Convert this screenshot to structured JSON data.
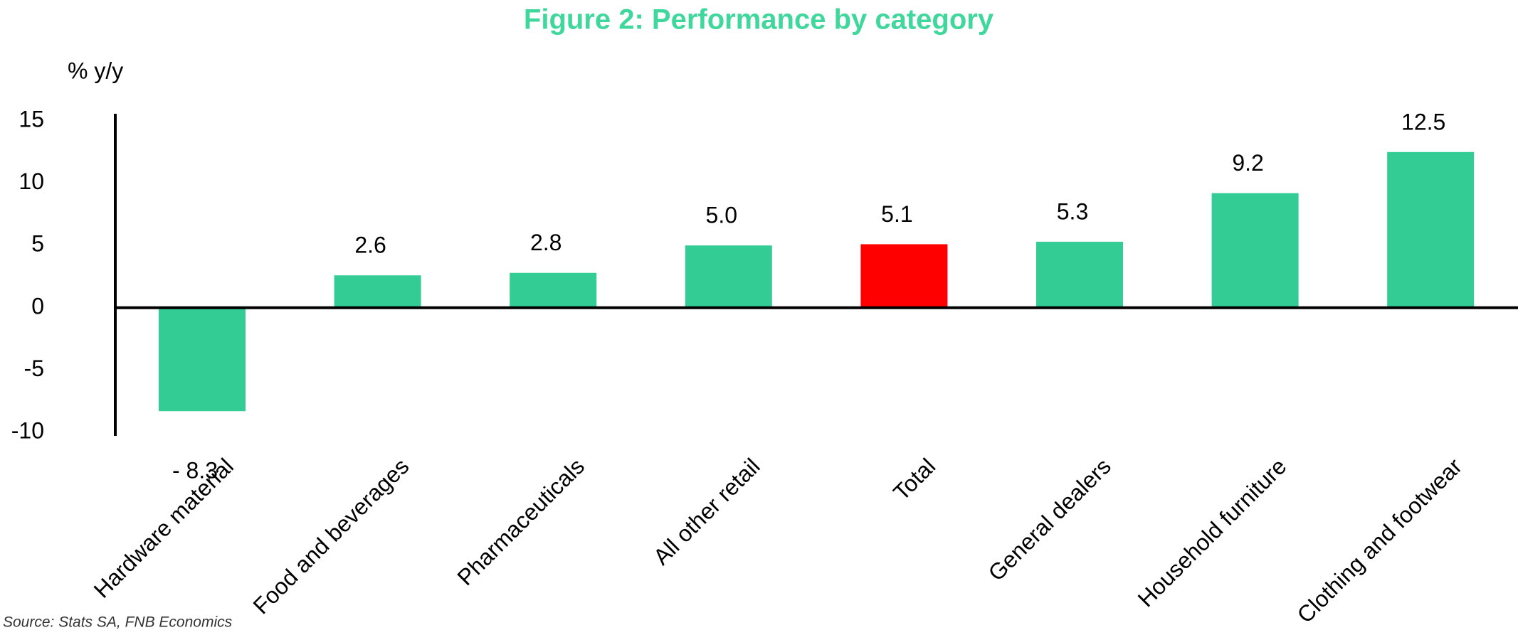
{
  "chart_data": {
    "type": "bar",
    "title": "Figure 2: Performance by category",
    "y_axis_label": "% y/y",
    "source": "Source: Stats SA, FNB Economics",
    "categories": [
      "Hardware material",
      "Food and beverages",
      "Pharmaceuticals",
      "All other retail",
      "Total",
      "General dealers",
      "Household furniture",
      "Clothing and footwear"
    ],
    "values": [
      -8.3,
      2.6,
      2.8,
      5.0,
      5.1,
      5.3,
      9.2,
      12.5
    ],
    "value_labels": [
      "- 8.3",
      "2.6",
      "2.8",
      "5.0",
      "5.1",
      "5.3",
      "9.2",
      "12.5"
    ],
    "colors": [
      "#33cc94",
      "#33cc94",
      "#33cc94",
      "#33cc94",
      "#ff0000",
      "#33cc94",
      "#33cc94",
      "#33cc94"
    ],
    "ylim": [
      -10,
      15
    ],
    "yticks": [
      -10,
      -5,
      0,
      5,
      10,
      15
    ],
    "grid": false
  }
}
